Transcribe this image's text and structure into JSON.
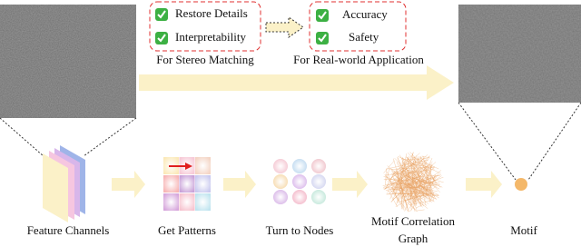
{
  "top": {
    "left_box": {
      "items": [
        "Restore Details",
        "Interpretability"
      ],
      "caption": "For Stereo Matching"
    },
    "right_box": {
      "items": [
        "Accuracy",
        "Safety"
      ],
      "caption": "For Real-world Application"
    }
  },
  "pipeline": {
    "steps": [
      {
        "label": "Feature Channels"
      },
      {
        "label": "Get Patterns"
      },
      {
        "label": "Turn to Nodes"
      },
      {
        "label_lines": [
          "Motif Correlation",
          "Graph"
        ]
      },
      {
        "label": "Motif"
      }
    ]
  }
}
